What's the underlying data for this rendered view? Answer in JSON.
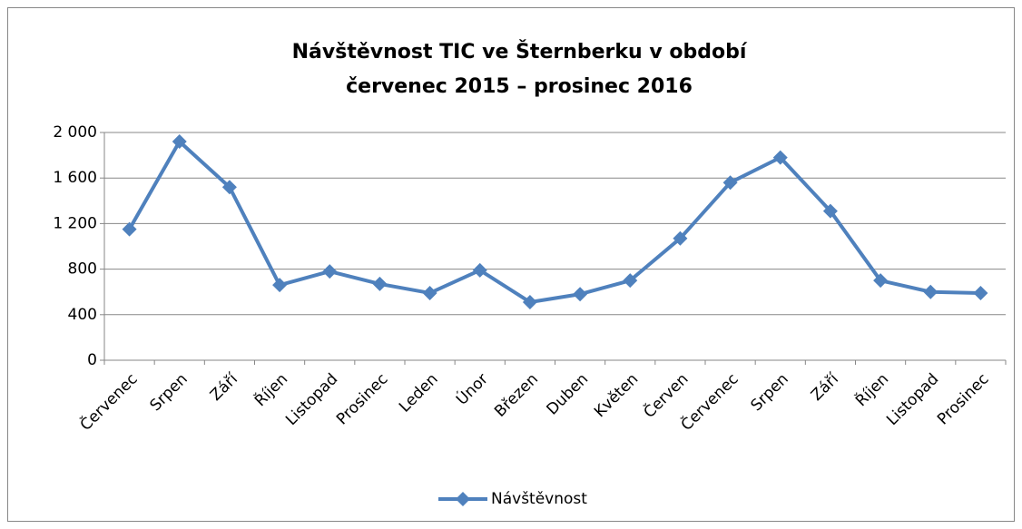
{
  "chart_data": {
    "type": "line",
    "title": [
      "Návštěvnost TIC ve Šternberku v období",
      "červenec 2015 – prosinec 2016"
    ],
    "categories": [
      "Červenec",
      "Srpen",
      "Září",
      "Říjen",
      "Listopad",
      "Prosinec",
      "Leden",
      "Únor",
      "Březen",
      "Duben",
      "Květen",
      "Červen",
      "Červenec",
      "Srpen",
      "Září",
      "Říjen",
      "Listopad",
      "Prosinec"
    ],
    "series": [
      {
        "name": "Návštěvnost",
        "color": "#4f81bd",
        "values": [
          1150,
          1920,
          1520,
          660,
          780,
          670,
          590,
          790,
          510,
          580,
          700,
          1070,
          1560,
          1780,
          1310,
          700,
          600,
          590
        ]
      }
    ],
    "ylim": [
      0,
      2000
    ],
    "yticks": [
      0,
      400,
      800,
      {
        "value": 1200,
        "label": "1 200"
      },
      {
        "value": 1600,
        "label": "1 600"
      },
      {
        "value": 2000,
        "label": "2 000"
      }
    ],
    "grid": true,
    "legend": "bottom"
  }
}
